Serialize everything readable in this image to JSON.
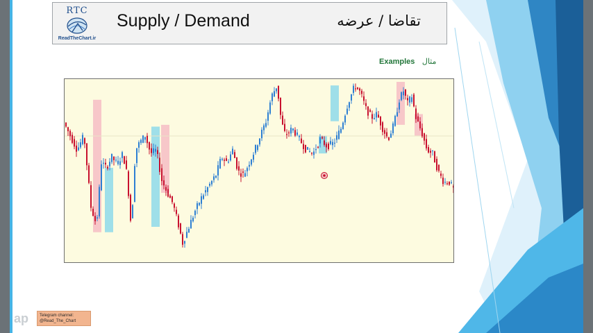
{
  "header": {
    "logo_top": "RTC",
    "logo_bottom": "ReadTheChart.ir",
    "title_en": "Supply / Demand",
    "title_fa": "تقاضا / عرضه"
  },
  "examples": {
    "label_en": "Examples",
    "label_fa": "مثال"
  },
  "watermark": {
    "telegram_line1": "Telegram channel:",
    "telegram_line2": "@Read_The_Chart",
    "aparat_text": "ap"
  },
  "colors": {
    "accent_blue": "#45b4e6",
    "dark_blue": "#1f6fa8",
    "chart_background": "#fdfbe0",
    "candle_up": "#2d7fd3",
    "candle_down": "#c8102e",
    "supply_zone": "#f4b5c2",
    "demand_zone": "#7fd6ec"
  },
  "chart_data": {
    "type": "candlestick",
    "title": "",
    "xlabel": "",
    "ylabel": "",
    "grid": false,
    "path": [
      [
        0,
        0.78
      ],
      [
        10,
        0.7
      ],
      [
        20,
        0.62
      ],
      [
        30,
        0.7
      ],
      [
        40,
        0.3
      ],
      [
        48,
        0.2
      ],
      [
        55,
        0.55
      ],
      [
        62,
        0.52
      ],
      [
        70,
        0.58
      ],
      [
        78,
        0.54
      ],
      [
        86,
        0.6
      ],
      [
        92,
        0.48
      ],
      [
        98,
        0.18
      ],
      [
        104,
        0.62
      ],
      [
        110,
        0.66
      ],
      [
        118,
        0.7
      ],
      [
        126,
        0.6
      ],
      [
        134,
        0.62
      ],
      [
        142,
        0.45
      ],
      [
        150,
        0.38
      ],
      [
        158,
        0.32
      ],
      [
        166,
        0.2
      ],
      [
        172,
        0.1
      ],
      [
        180,
        0.18
      ],
      [
        190,
        0.28
      ],
      [
        200,
        0.36
      ],
      [
        210,
        0.42
      ],
      [
        220,
        0.48
      ],
      [
        228,
        0.58
      ],
      [
        236,
        0.55
      ],
      [
        244,
        0.62
      ],
      [
        252,
        0.5
      ],
      [
        260,
        0.48
      ],
      [
        268,
        0.55
      ],
      [
        276,
        0.62
      ],
      [
        284,
        0.7
      ],
      [
        292,
        0.78
      ],
      [
        300,
        0.92
      ],
      [
        308,
        0.98
      ],
      [
        314,
        0.78
      ],
      [
        320,
        0.7
      ],
      [
        330,
        0.74
      ],
      [
        340,
        0.68
      ],
      [
        350,
        0.62
      ],
      [
        360,
        0.6
      ],
      [
        370,
        0.68
      ],
      [
        380,
        0.64
      ],
      [
        390,
        0.66
      ],
      [
        400,
        0.74
      ],
      [
        410,
        0.88
      ],
      [
        420,
        0.98
      ],
      [
        428,
        0.94
      ],
      [
        436,
        0.85
      ],
      [
        444,
        0.8
      ],
      [
        452,
        0.82
      ],
      [
        460,
        0.74
      ],
      [
        468,
        0.68
      ],
      [
        476,
        0.76
      ],
      [
        484,
        0.9
      ],
      [
        490,
        0.95
      ],
      [
        496,
        0.88
      ],
      [
        502,
        0.92
      ],
      [
        508,
        0.8
      ],
      [
        516,
        0.72
      ],
      [
        524,
        0.62
      ],
      [
        532,
        0.6
      ],
      [
        540,
        0.5
      ],
      [
        548,
        0.44
      ],
      [
        556,
        0.44
      ],
      [
        562,
        0.4
      ]
    ],
    "zones": [
      {
        "type": "supply",
        "x": 41,
        "from": 0.16,
        "to": 0.9
      },
      {
        "type": "demand",
        "x": 58,
        "from": 0.16,
        "to": 0.52
      },
      {
        "type": "demand",
        "x": 125,
        "from": 0.19,
        "to": 0.75
      },
      {
        "type": "supply",
        "x": 139,
        "from": 0.38,
        "to": 0.76
      },
      {
        "type": "demand",
        "x": 366,
        "from": 0.6,
        "to": 0.7
      },
      {
        "type": "demand",
        "x": 383,
        "from": 0.78,
        "to": 0.98
      },
      {
        "type": "supply",
        "x": 478,
        "from": 0.76,
        "to": 1.0
      },
      {
        "type": "supply",
        "x": 504,
        "from": 0.7,
        "to": 0.82
      }
    ]
  }
}
